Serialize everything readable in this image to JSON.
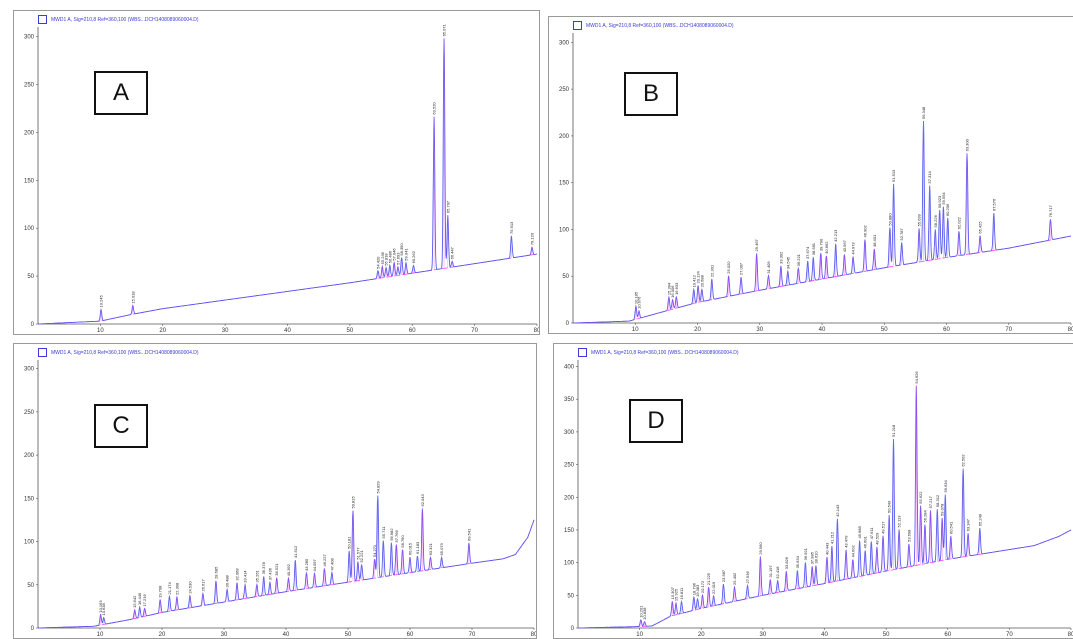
{
  "colors": {
    "trace": "#5a5af0",
    "baseline": "#ff44ff",
    "axis": "#555555",
    "frame": "#9a9a9a"
  },
  "legend_icon": "square-outline-icon",
  "chart_data": [
    {
      "panel_label": "A",
      "type": "line",
      "legend": "MWD1 A, Sig=210,8 Ref=360,100 (WBS...DCH1408089060004.D)",
      "xlim": [
        0,
        80
      ],
      "ylim": [
        0,
        310
      ],
      "xticks": [
        10,
        20,
        30,
        40,
        50,
        60,
        70,
        80
      ],
      "yticks": [
        0,
        50,
        100,
        150,
        200,
        250,
        300
      ],
      "baseline": [
        [
          0,
          0
        ],
        [
          10,
          3
        ],
        [
          15,
          10
        ],
        [
          20,
          16
        ],
        [
          30,
          25
        ],
        [
          40,
          34
        ],
        [
          50,
          43
        ],
        [
          54,
          47
        ],
        [
          60,
          53
        ],
        [
          70,
          63
        ],
        [
          80,
          73
        ]
      ],
      "peaks": [
        [
          10.1,
          12
        ],
        [
          15.2,
          9
        ],
        [
          54.5,
          8
        ],
        [
          55.2,
          12
        ],
        [
          55.8,
          10
        ],
        [
          56.4,
          12
        ],
        [
          57.1,
          14
        ],
        [
          57.7,
          9
        ],
        [
          58.3,
          18
        ],
        [
          59.0,
          12
        ],
        [
          60.2,
          8
        ],
        [
          63.5,
          160
        ],
        [
          65.1,
          240
        ],
        [
          65.7,
          55
        ],
        [
          66.4,
          6
        ],
        [
          75.9,
          23
        ],
        [
          79.2,
          8
        ]
      ],
      "peak_labels": [
        "10.245",
        "15.018",
        "54.420",
        "55.236",
        "55.818",
        "56.486",
        "57.046",
        "57.693",
        "58.350",
        "59.041",
        "60.262",
        "63.520",
        "65.071",
        "65.707",
        "66.447",
        "75.913",
        "79.120"
      ]
    },
    {
      "panel_label": "B",
      "type": "line",
      "legend": "MWD1 A, Sig=210,8 Ref=360,100 (WBS...DCH1408089060004.D)",
      "xlim": [
        0,
        80
      ],
      "ylim": [
        0,
        310
      ],
      "xticks": [
        10,
        20,
        30,
        40,
        50,
        60,
        70,
        80
      ],
      "yticks": [
        0,
        50,
        100,
        150,
        200,
        250,
        300
      ],
      "baseline": [
        [
          0,
          0
        ],
        [
          9,
          2
        ],
        [
          15,
          13
        ],
        [
          20,
          22
        ],
        [
          30,
          35
        ],
        [
          40,
          47
        ],
        [
          50,
          59
        ],
        [
          60,
          70
        ],
        [
          70,
          80
        ],
        [
          80,
          93
        ]
      ],
      "peaks": [
        [
          10.1,
          14
        ],
        [
          10.6,
          8
        ],
        [
          15.4,
          14
        ],
        [
          16.0,
          10
        ],
        [
          16.6,
          12
        ],
        [
          19.4,
          15
        ],
        [
          20.1,
          18
        ],
        [
          20.7,
          13
        ],
        [
          22.3,
          22
        ],
        [
          25.0,
          22
        ],
        [
          27.0,
          18
        ],
        [
          29.5,
          40
        ],
        [
          31.4,
          14
        ],
        [
          33.4,
          22
        ],
        [
          34.5,
          15
        ],
        [
          36.2,
          16
        ],
        [
          37.7,
          22
        ],
        [
          38.6,
          25
        ],
        [
          39.8,
          28
        ],
        [
          40.7,
          24
        ],
        [
          42.2,
          35
        ],
        [
          43.6,
          22
        ],
        [
          45.0,
          18
        ],
        [
          46.9,
          34
        ],
        [
          48.4,
          22
        ],
        [
          50.9,
          42
        ],
        [
          51.5,
          88
        ],
        [
          52.8,
          24
        ],
        [
          55.6,
          36
        ],
        [
          56.3,
          150
        ],
        [
          57.3,
          80
        ],
        [
          58.2,
          32
        ],
        [
          58.9,
          52
        ],
        [
          59.5,
          55
        ],
        [
          60.2,
          42
        ],
        [
          62.0,
          26
        ],
        [
          63.3,
          108
        ],
        [
          65.4,
          18
        ],
        [
          67.6,
          40
        ],
        [
          76.7,
          22
        ]
      ],
      "peak_labels": [
        "10.185",
        "10.676",
        "15.394",
        "16.006",
        "16.633",
        "19.412",
        "20.124",
        "20.688",
        "22.301",
        "25.020",
        "27.007",
        "29.467",
        "31.409",
        "33.392",
        "34.545",
        "36.221",
        "37.674",
        "38.581",
        "39.790",
        "40.662",
        "42.213",
        "43.567",
        "44.973",
        "46.902",
        "48.401",
        "50.880",
        "51.513",
        "52.787",
        "55.639",
        "56.348",
        "57.314",
        "58.226",
        "58.923",
        "59.554",
        "60.206",
        "62.022",
        "63.300",
        "65.425",
        "67.576",
        "76.717"
      ]
    },
    {
      "panel_label": "C",
      "type": "line",
      "legend": "MWD1 A, Sig=210,8 Ref=360,100 (WBS...DCH1408089060004.D)",
      "xlim": [
        0,
        80
      ],
      "ylim": [
        0,
        310
      ],
      "xticks": [
        10,
        20,
        30,
        40,
        50,
        60,
        70,
        80
      ],
      "yticks": [
        0,
        50,
        100,
        150,
        200,
        250,
        300
      ],
      "baseline": [
        [
          0,
          0
        ],
        [
          9,
          2
        ],
        [
          15,
          10
        ],
        [
          20,
          18
        ],
        [
          30,
          30
        ],
        [
          40,
          42
        ],
        [
          50,
          53
        ],
        [
          60,
          64
        ],
        [
          70,
          75
        ],
        [
          75,
          80
        ],
        [
          77,
          85
        ],
        [
          79,
          105
        ],
        [
          80,
          125
        ]
      ],
      "peaks": [
        [
          10.1,
          12
        ],
        [
          10.6,
          8
        ],
        [
          15.6,
          10
        ],
        [
          16.4,
          12
        ],
        [
          17.2,
          9
        ],
        [
          19.7,
          15
        ],
        [
          21.2,
          17
        ],
        [
          22.4,
          15
        ],
        [
          24.5,
          14
        ],
        [
          26.6,
          14
        ],
        [
          28.7,
          26
        ],
        [
          30.5,
          14
        ],
        [
          32.1,
          20
        ],
        [
          33.4,
          16
        ],
        [
          35.3,
          14
        ],
        [
          36.4,
          22
        ],
        [
          37.4,
          14
        ],
        [
          38.5,
          18
        ],
        [
          40.4,
          15
        ],
        [
          41.5,
          35
        ],
        [
          43.3,
          18
        ],
        [
          44.6,
          16
        ],
        [
          46.2,
          20
        ],
        [
          47.4,
          14
        ],
        [
          50.2,
          36
        ],
        [
          50.8,
          82
        ],
        [
          51.6,
          22
        ],
        [
          52.2,
          18
        ],
        [
          54.3,
          22
        ],
        [
          54.8,
          95
        ],
        [
          55.7,
          42
        ],
        [
          57.0,
          38
        ],
        [
          57.8,
          35
        ],
        [
          58.8,
          28
        ],
        [
          60.0,
          18
        ],
        [
          61.2,
          18
        ],
        [
          62.0,
          72
        ],
        [
          63.3,
          14
        ],
        [
          65.1,
          12
        ],
        [
          69.5,
          24
        ]
      ],
      "peak_labels": [
        "10.163",
        "10.638",
        "15.642",
        "16.449",
        "17.216",
        "19.708",
        "21.174",
        "22.398",
        "24.530",
        "26.617",
        "28.685",
        "30.488",
        "32.068",
        "33.414",
        "35.261",
        "36.378",
        "37.436",
        "38.521",
        "40.392",
        "41.512",
        "43.285",
        "44.597",
        "46.227",
        "47.408",
        "50.181",
        "50.815",
        "51.577",
        "52.221",
        "54.271",
        "54.829",
        "55.711",
        "56.982",
        "57.766",
        "58.790",
        "60.015",
        "61.183",
        "62.043",
        "63.321",
        "65.073",
        "69.541"
      ]
    },
    {
      "panel_label": "D",
      "type": "line",
      "legend": "MWD1 A, Sig=210,8 Ref=360,100 (WBS...DCH1408089060004.D)",
      "xlim": [
        0,
        80
      ],
      "ylim": [
        0,
        410
      ],
      "xticks": [
        10,
        20,
        30,
        40,
        50,
        60,
        70,
        80
      ],
      "yticks": [
        0,
        50,
        100,
        150,
        200,
        250,
        300,
        350,
        400
      ],
      "baseline": [
        [
          0,
          0
        ],
        [
          9,
          2
        ],
        [
          12,
          3
        ],
        [
          15,
          18
        ],
        [
          20,
          30
        ],
        [
          30,
          50
        ],
        [
          40,
          68
        ],
        [
          50,
          87
        ],
        [
          60,
          105
        ],
        [
          70,
          120
        ],
        [
          74,
          126
        ],
        [
          78,
          140
        ],
        [
          80,
          150
        ]
      ],
      "peaks": [
        [
          10.2,
          10
        ],
        [
          10.8,
          7
        ],
        [
          15.3,
          22
        ],
        [
          15.9,
          18
        ],
        [
          16.8,
          18
        ],
        [
          18.8,
          20
        ],
        [
          19.4,
          16
        ],
        [
          20.2,
          20
        ],
        [
          21.2,
          30
        ],
        [
          22.0,
          15
        ],
        [
          23.6,
          30
        ],
        [
          25.4,
          22
        ],
        [
          27.5,
          20
        ],
        [
          29.6,
          60
        ],
        [
          31.2,
          22
        ],
        [
          32.4,
          18
        ],
        [
          33.8,
          30
        ],
        [
          35.6,
          28
        ],
        [
          36.9,
          38
        ],
        [
          38.0,
          30
        ],
        [
          38.6,
          30
        ],
        [
          40.4,
          40
        ],
        [
          41.2,
          55
        ],
        [
          42.1,
          95
        ],
        [
          43.5,
          45
        ],
        [
          44.6,
          28
        ],
        [
          45.7,
          55
        ],
        [
          46.6,
          38
        ],
        [
          47.6,
          50
        ],
        [
          48.5,
          40
        ],
        [
          49.5,
          55
        ],
        [
          50.5,
          85
        ],
        [
          51.2,
          200
        ],
        [
          52.1,
          60
        ],
        [
          53.7,
          35
        ],
        [
          54.9,
          275
        ],
        [
          55.6,
          90
        ],
        [
          56.3,
          60
        ],
        [
          57.2,
          80
        ],
        [
          58.3,
          80
        ],
        [
          59.1,
          65
        ],
        [
          59.6,
          100
        ],
        [
          60.5,
          35
        ],
        [
          62.5,
          135
        ],
        [
          63.3,
          35
        ],
        [
          65.2,
          40
        ]
      ],
      "peak_labels": [
        "10.201",
        "10.838",
        "15.307",
        "15.925",
        "16.811",
        "18.796",
        "19.383",
        "20.172",
        "21.225",
        "22.019",
        "23.587",
        "25.402",
        "27.536",
        "29.560",
        "31.197",
        "32.418",
        "33.826",
        "35.634",
        "36.921",
        "37.985",
        "38.610",
        "40.443",
        "41.212",
        "42.143",
        "43.479",
        "44.602",
        "45.688",
        "46.601",
        "47.611",
        "48.529",
        "49.517",
        "50.543",
        "51.218",
        "52.113",
        "53.698",
        "54.926",
        "55.622",
        "56.284",
        "57.217",
        "58.312",
        "59.078",
        "59.634",
        "60.541",
        "62.502",
        "63.347",
        "65.249"
      ]
    }
  ]
}
